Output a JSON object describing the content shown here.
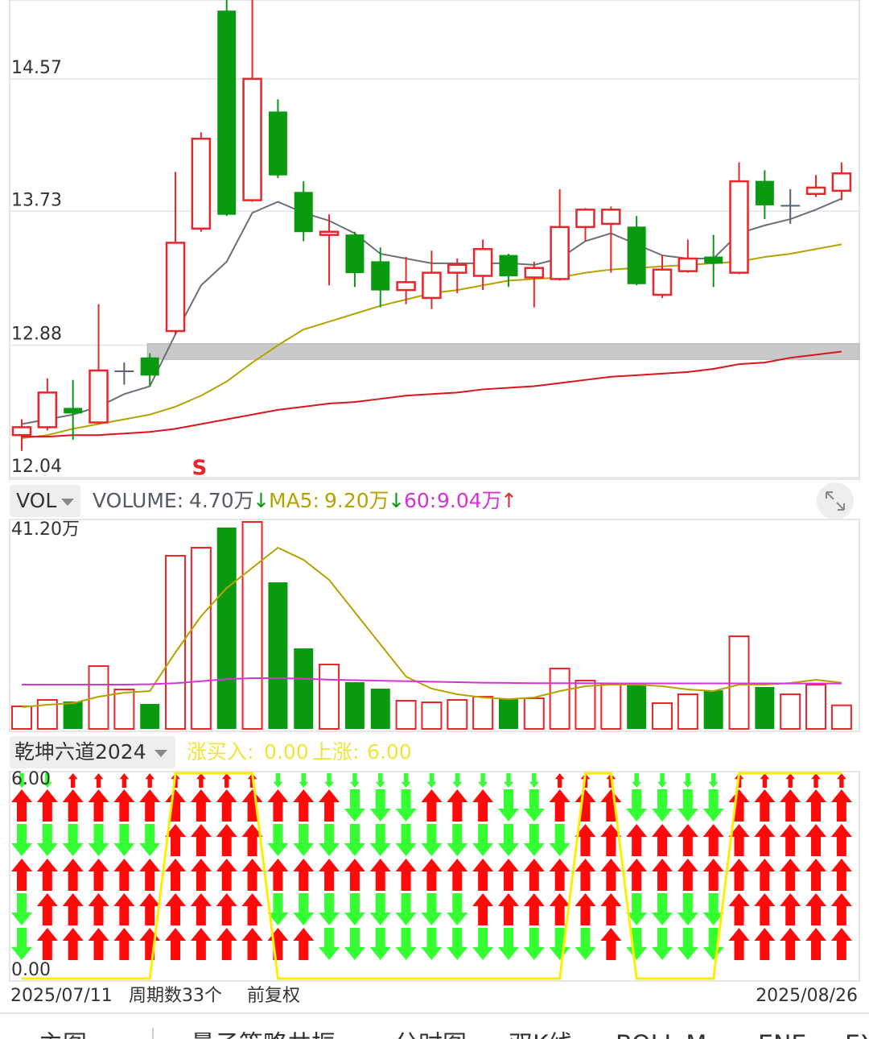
{
  "chart_data": [
    {
      "type": "candlestick",
      "open": [
        12.31,
        12.36,
        12.48,
        12.39,
        12.71,
        12.8,
        12.97,
        13.62,
        15.0,
        13.8,
        14.36,
        13.85,
        13.58,
        13.58,
        13.41,
        13.23,
        13.18,
        13.34,
        13.32,
        13.45,
        13.31,
        13.3,
        13.63,
        13.65,
        13.63,
        13.2,
        13.35,
        13.44,
        13.34,
        13.92,
        13.77,
        13.84,
        13.86
      ],
      "high": [
        12.41,
        12.67,
        12.66,
        13.14,
        12.77,
        12.83,
        13.98,
        14.23,
        15.07,
        15.07,
        14.44,
        13.92,
        13.71,
        13.6,
        13.5,
        13.44,
        13.48,
        13.43,
        13.55,
        13.46,
        13.41,
        13.87,
        13.75,
        13.76,
        13.7,
        13.45,
        13.55,
        13.58,
        14.04,
        13.99,
        13.87,
        13.96,
        14.04
      ],
      "low": [
        12.21,
        12.34,
        12.28,
        12.38,
        12.63,
        12.62,
        12.95,
        13.6,
        13.7,
        13.79,
        13.94,
        13.54,
        13.26,
        13.25,
        13.12,
        13.14,
        13.11,
        13.21,
        13.23,
        13.25,
        13.12,
        13.29,
        13.54,
        13.34,
        13.26,
        13.18,
        13.34,
        13.25,
        13.33,
        13.68,
        13.65,
        13.82,
        13.8
      ],
      "close": [
        12.36,
        12.58,
        12.45,
        12.72,
        12.72,
        12.69,
        13.53,
        14.19,
        13.71,
        14.57,
        13.96,
        13.6,
        13.6,
        13.34,
        13.23,
        13.28,
        13.34,
        13.39,
        13.49,
        13.32,
        13.37,
        13.63,
        13.74,
        13.74,
        13.27,
        13.36,
        13.43,
        13.4,
        13.92,
        13.77,
        13.76,
        13.88,
        13.97
      ],
      "up_color": "#e8262b",
      "down_color": "#0a9a12",
      "flat_color": "#56607a",
      "lines": [
        {
          "color": "#6b6f78",
          "values": [
            12.38,
            12.41,
            12.44,
            12.49,
            12.57,
            12.62,
            12.95,
            13.26,
            13.41,
            13.72,
            13.79,
            13.72,
            13.67,
            13.59,
            13.46,
            13.43,
            13.4,
            13.4,
            13.4,
            13.4,
            13.39,
            13.43,
            13.54,
            13.59,
            13.52,
            13.45,
            13.43,
            13.43,
            13.59,
            13.64,
            13.68,
            13.74,
            13.81
          ]
        },
        {
          "color": "#b5a300",
          "values": [
            12.29,
            12.31,
            12.35,
            12.38,
            12.41,
            12.44,
            12.49,
            12.56,
            12.65,
            12.77,
            12.88,
            12.98,
            13.03,
            13.08,
            13.13,
            13.17,
            13.21,
            13.23,
            13.26,
            13.29,
            13.3,
            13.31,
            13.34,
            13.36,
            13.37,
            13.38,
            13.39,
            13.4,
            13.41,
            13.44,
            13.46,
            13.49,
            13.52
          ]
        },
        {
          "color": "#d8161c",
          "values": [
            12.3,
            12.3,
            12.31,
            12.31,
            12.32,
            12.33,
            12.35,
            12.38,
            12.41,
            12.44,
            12.47,
            12.49,
            12.51,
            12.52,
            12.54,
            12.56,
            12.57,
            12.58,
            12.6,
            12.61,
            12.62,
            12.64,
            12.66,
            12.68,
            12.69,
            12.7,
            12.71,
            12.73,
            12.76,
            12.77,
            12.8,
            12.82,
            12.84
          ]
        }
      ],
      "band": [
        12.79,
        12.89
      ],
      "band_start": 5,
      "annotations": [
        {
          "text": "S",
          "at": 7
        }
      ],
      "ylim": [
        12.03,
        15.07
      ],
      "yticks": [
        12.04,
        12.88,
        13.73,
        14.57
      ],
      "grid": true
    },
    {
      "type": "volume",
      "button": "VOL",
      "series": [
        {
          "name": "VOLUME:",
          "color": "#555a63",
          "values": [
            4.49,
            5.77,
            5.45,
            12.5,
            7.86,
            4.97,
            34.47,
            36.07,
            40.08,
            41.2,
            29.18,
            16.03,
            12.82,
            9.3,
            8.02,
            5.61,
            5.29,
            5.77,
            6.41,
            6.09,
            6.09,
            12.02,
            9.62,
            8.82,
            8.98,
            5.13,
            6.89,
            7.69,
            18.44,
            8.34,
            6.89,
            8.82,
            4.7
          ],
          "value_label": "4.70万",
          "trend": "↓",
          "trend_color": "#0a9a12"
        },
        {
          "name": "MA5:",
          "color": "#b5a300",
          "values": [
            4.33,
            4.81,
            5.13,
            6.41,
            7.21,
            7.53,
            15.23,
            22.44,
            28.05,
            32.06,
            36.07,
            33.66,
            29.66,
            23.24,
            16.83,
            10.42,
            8.02,
            6.89,
            6.25,
            5.93,
            6.25,
            7.53,
            8.5,
            8.82,
            8.82,
            8.5,
            7.85,
            7.53,
            8.82,
            8.82,
            9.14,
            9.78,
            9.2
          ],
          "value_label": "9.20万",
          "trend": "↓",
          "trend_color": "#0a9a12"
        },
        {
          "name": "60:",
          "color": "#d633d6",
          "values": [
            8.82,
            8.82,
            8.82,
            8.82,
            8.82,
            8.9,
            9.1,
            9.5,
            9.9,
            10.1,
            10.1,
            10.0,
            9.8,
            9.7,
            9.6,
            9.5,
            9.4,
            9.3,
            9.2,
            9.15,
            9.1,
            9.1,
            9.1,
            9.05,
            9.05,
            9.05,
            9.05,
            9.05,
            9.05,
            9.05,
            9.04,
            9.04,
            9.04
          ],
          "value_label": "9.04万",
          "trend": "↑",
          "trend_color": "#e8262b"
        }
      ],
      "ylim": [
        0,
        41.2
      ],
      "yticks": [
        {
          "value": 41.2,
          "label": "41.20万"
        }
      ]
    },
    {
      "type": "signal",
      "title": "乾坤六道2024",
      "series": [
        {
          "name": "涨买入:",
          "value": 0,
          "value_label": "0.00"
        },
        {
          "name": "上涨:",
          "color": "#ffee00",
          "values": [
            0,
            0,
            0,
            0,
            0,
            0,
            6,
            6,
            6,
            6,
            0,
            0,
            0,
            0,
            0,
            0,
            0,
            0,
            0,
            0,
            0,
            0,
            6,
            6,
            0,
            0,
            0,
            0,
            6,
            6,
            6,
            6,
            6
          ],
          "value_label": "6.00"
        }
      ],
      "label_color": "#f2e33a",
      "arrows": [
        [
          0,
          0,
          1,
          1,
          1,
          1,
          1,
          1,
          1,
          1,
          0,
          0,
          0,
          0,
          0,
          0,
          0,
          0,
          0,
          0,
          0,
          1,
          1,
          1,
          0,
          0,
          0,
          0,
          1,
          1,
          1,
          1,
          1
        ],
        [
          1,
          1,
          1,
          1,
          1,
          1,
          1,
          1,
          1,
          1,
          1,
          1,
          1,
          0,
          0,
          0,
          1,
          1,
          1,
          0,
          0,
          1,
          1,
          1,
          0,
          0,
          0,
          0,
          1,
          1,
          1,
          1,
          1
        ],
        [
          0,
          0,
          0,
          0,
          0,
          0,
          1,
          1,
          1,
          1,
          0,
          0,
          0,
          0,
          0,
          0,
          0,
          0,
          0,
          0,
          0,
          0,
          1,
          1,
          1,
          1,
          1,
          1,
          1,
          1,
          1,
          1,
          1
        ],
        [
          1,
          1,
          1,
          1,
          1,
          1,
          1,
          1,
          1,
          1,
          1,
          1,
          1,
          1,
          1,
          1,
          1,
          1,
          1,
          1,
          1,
          1,
          1,
          1,
          1,
          1,
          1,
          1,
          1,
          1,
          1,
          1,
          1
        ],
        [
          0,
          1,
          1,
          1,
          1,
          1,
          1,
          1,
          1,
          1,
          0,
          0,
          0,
          0,
          0,
          0,
          0,
          0,
          1,
          1,
          1,
          1,
          1,
          1,
          0,
          0,
          0,
          0,
          1,
          1,
          1,
          1,
          1
        ],
        [
          0,
          1,
          1,
          1,
          1,
          1,
          1,
          1,
          1,
          1,
          1,
          1,
          0,
          0,
          0,
          0,
          0,
          0,
          0,
          0,
          0,
          0,
          0,
          1,
          0,
          0,
          0,
          0,
          1,
          1,
          1,
          1,
          1
        ]
      ],
      "up_color": "#ff0a0a",
      "down_color": "#33ff33",
      "ylim": [
        0,
        6
      ],
      "yticks": [
        {
          "value": 6,
          "label": "6.00"
        },
        {
          "value": 0,
          "label": "0.00"
        }
      ]
    }
  ],
  "footer": {
    "start": "2025/07/11",
    "count": "周期数33个",
    "adjust": "前复权",
    "end": "2025/08/26"
  },
  "tabs": [
    "主图",
    "量子策略共振",
    "分时图",
    "双K线",
    "BOLL-M",
    "ENE",
    "EX"
  ]
}
